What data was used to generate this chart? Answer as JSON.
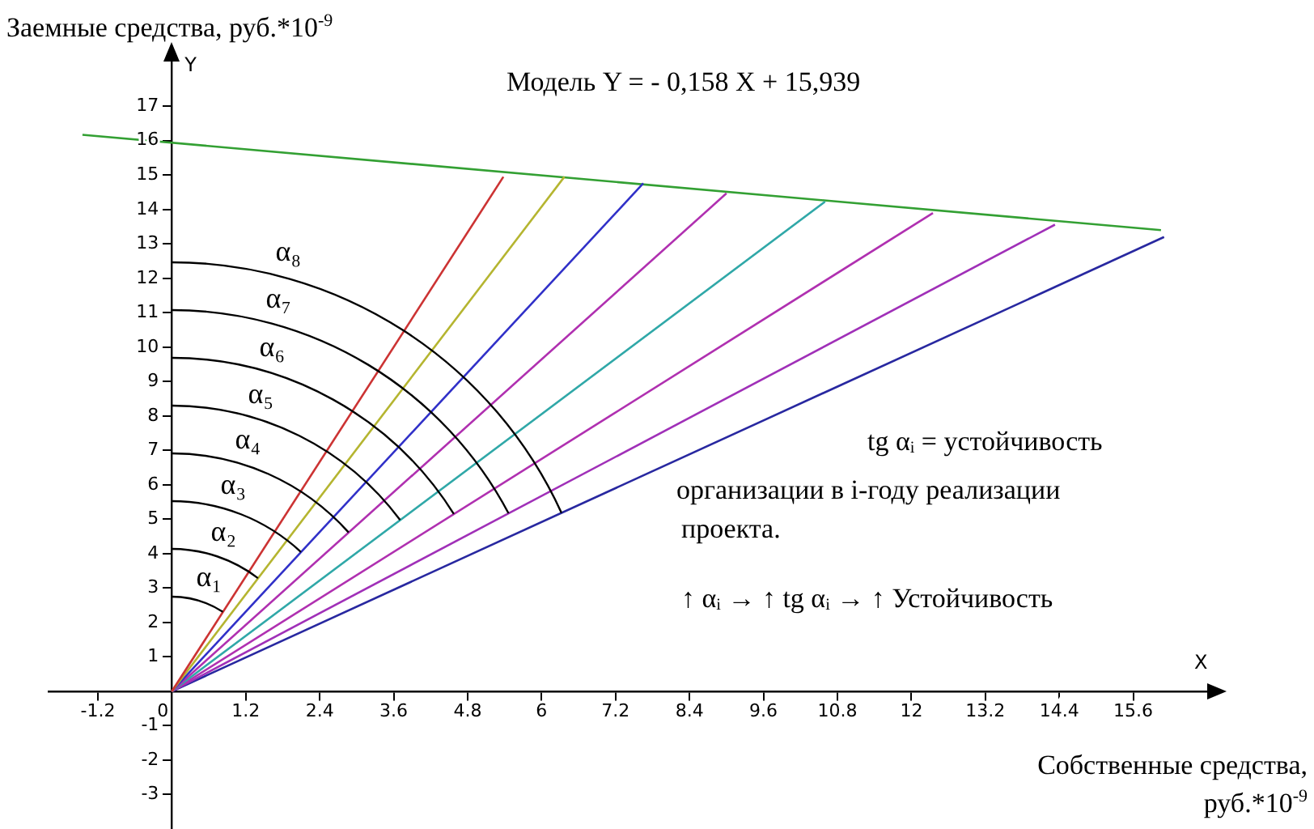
{
  "chart_data": {
    "type": "line",
    "xlabel": "Собственные средства, руб.*10$^{-9}$",
    "ylabel": "Заемные средства, руб.*10$^{-9}$",
    "annotations": [
      "Модель  Y = - 0,158 X + 15,939",
      "α₁",
      "α₂",
      "α₃",
      "α₄",
      "α₅",
      "α₆",
      "α₇",
      "α₈",
      "tg αᵢ = устойчивость",
      "организации в i-году реализации",
      "проекта.",
      "↑ αᵢ → ↑ tg αᵢ → ↑ Устойчивость",
      "X",
      "Y"
    ],
    "series": [
      {
        "color": "#cc3333",
        "x": [
          0,
          5.38
        ],
        "values": [
          0,
          14.95
        ]
      },
      {
        "color": "#b5b530",
        "x": [
          0,
          6.37
        ],
        "values": [
          0,
          14.95
        ]
      },
      {
        "color": "#3030c8",
        "x": [
          0,
          7.65
        ],
        "values": [
          0,
          14.76
        ]
      },
      {
        "color": "#b030b0",
        "x": [
          0,
          9.0
        ],
        "values": [
          0,
          14.47
        ]
      },
      {
        "color": "#30a8a8",
        "x": [
          0,
          10.6
        ],
        "values": [
          0,
          14.23
        ]
      },
      {
        "color": "#b030b0",
        "x": [
          0,
          12.35
        ],
        "values": [
          0,
          13.9
        ]
      },
      {
        "color": "#a030b8",
        "x": [
          0,
          14.33
        ],
        "values": [
          0,
          13.56
        ]
      },
      {
        "color": "#2828a0",
        "x": [
          0,
          16.1
        ],
        "values": [
          0,
          13.2
        ]
      },
      {
        "color": "#33a033",
        "x": [
          -1.45,
          16.05
        ],
        "values": [
          16.17,
          13.4
        ]
      }
    ],
    "xlim": [
      -2,
      16.8
    ],
    "ylim": [
      -4,
      18.3
    ],
    "xticks": [
      -1.2,
      0,
      1.2,
      2.4,
      3.6,
      4.8,
      6,
      7.2,
      8.4,
      9.6,
      10.8,
      12,
      13.2,
      14.4,
      15.6
    ],
    "yticks": [
      -3,
      -2,
      -1,
      1,
      2,
      3,
      4,
      5,
      6,
      7,
      8,
      9,
      10,
      11,
      12,
      13,
      14,
      15,
      16,
      17
    ],
    "grid": false,
    "legend": false,
    "marker": "none",
    "line_style": "solid"
  }
}
